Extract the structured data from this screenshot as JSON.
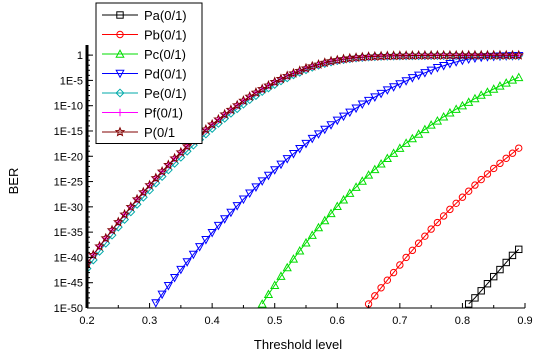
{
  "chart_data": {
    "type": "line",
    "title": "",
    "xlabel": "Threshold level",
    "ylabel": "BER",
    "x_scale": "linear",
    "y_scale": "log",
    "xlim": [
      0.2,
      0.9
    ],
    "ylim_exponent": [
      -50,
      2
    ],
    "x_ticks": [
      "0.2",
      "0.3",
      "0.4",
      "0.5",
      "0.6",
      "0.7",
      "0.8",
      "0.9"
    ],
    "y_ticks": [
      "1",
      "1E-5",
      "1E-10",
      "1E-15",
      "1E-20",
      "1E-25",
      "1E-30",
      "1E-35",
      "1E-40",
      "1E-45",
      "1E-50"
    ],
    "legend_position": "top-left",
    "grid": false,
    "series": [
      {
        "name": "Pa(0/1)",
        "color": "#000000",
        "marker": "square",
        "x": [
          0.81,
          0.82,
          0.83,
          0.84,
          0.85,
          0.86,
          0.87,
          0.88,
          0.89
        ],
        "y_exponent": [
          -49.2,
          -48.0,
          -46.6,
          -45.2,
          -43.8,
          -42.4,
          -41.0,
          -39.6,
          -38.4
        ]
      },
      {
        "name": "Pb(0/1)",
        "color": "#ff0000",
        "marker": "circle",
        "x": [
          0.65,
          0.66,
          0.67,
          0.68,
          0.69,
          0.7,
          0.71,
          0.72,
          0.73,
          0.74,
          0.75,
          0.76,
          0.77,
          0.78,
          0.79,
          0.8,
          0.81,
          0.82,
          0.83,
          0.84,
          0.85,
          0.86,
          0.87,
          0.88,
          0.89
        ],
        "y_exponent": [
          -49.2,
          -47.6,
          -46.0,
          -44.5,
          -43.0,
          -41.5,
          -40.0,
          -38.6,
          -37.2,
          -35.8,
          -34.4,
          -33.1,
          -31.8,
          -30.5,
          -29.3,
          -28.1,
          -26.9,
          -25.7,
          -24.6,
          -23.5,
          -22.4,
          -21.4,
          -20.4,
          -19.4,
          -18.4
        ]
      },
      {
        "name": "Pc(0/1)",
        "color": "#00dd00",
        "marker": "triangle-up",
        "x": [
          0.48,
          0.49,
          0.5,
          0.51,
          0.52,
          0.53,
          0.54,
          0.55,
          0.56,
          0.57,
          0.58,
          0.59,
          0.6,
          0.61,
          0.62,
          0.63,
          0.64,
          0.65,
          0.66,
          0.67,
          0.68,
          0.69,
          0.7,
          0.71,
          0.72,
          0.73,
          0.74,
          0.75,
          0.76,
          0.77,
          0.78,
          0.79,
          0.8,
          0.81,
          0.82,
          0.83,
          0.84,
          0.85,
          0.86,
          0.87,
          0.88,
          0.89
        ],
        "y_exponent": [
          -49.2,
          -47.3,
          -45.5,
          -43.7,
          -42.0,
          -40.3,
          -38.7,
          -37.1,
          -35.6,
          -34.1,
          -32.7,
          -31.3,
          -29.9,
          -28.6,
          -27.3,
          -26.1,
          -24.9,
          -23.7,
          -22.6,
          -21.5,
          -20.4,
          -19.4,
          -18.4,
          -17.4,
          -16.5,
          -15.6,
          -14.7,
          -13.8,
          -13.0,
          -12.2,
          -11.4,
          -10.7,
          -10.0,
          -9.3,
          -8.6,
          -7.9,
          -7.3,
          -6.7,
          -6.1,
          -5.5,
          -4.9,
          -4.4
        ]
      },
      {
        "name": "Pd(0/1)",
        "color": "#0000ff",
        "marker": "triangle-down",
        "x": [
          0.31,
          0.32,
          0.33,
          0.34,
          0.35,
          0.36,
          0.37,
          0.38,
          0.39,
          0.4,
          0.41,
          0.42,
          0.43,
          0.44,
          0.45,
          0.46,
          0.47,
          0.48,
          0.49,
          0.5,
          0.51,
          0.52,
          0.53,
          0.54,
          0.55,
          0.56,
          0.57,
          0.58,
          0.59,
          0.6,
          0.61,
          0.62,
          0.63,
          0.64,
          0.65,
          0.66,
          0.67,
          0.68,
          0.69,
          0.7,
          0.71,
          0.72,
          0.73,
          0.74,
          0.75,
          0.76,
          0.77,
          0.78,
          0.79,
          0.8,
          0.81,
          0.82,
          0.83,
          0.84,
          0.85,
          0.86,
          0.87,
          0.88,
          0.89
        ],
        "y_exponent": [
          -49.0,
          -47.3,
          -45.6,
          -44.0,
          -42.4,
          -40.9,
          -39.4,
          -37.9,
          -36.5,
          -35.1,
          -33.7,
          -32.4,
          -31.1,
          -29.8,
          -28.5,
          -27.3,
          -26.1,
          -24.9,
          -23.8,
          -22.7,
          -21.6,
          -20.5,
          -19.5,
          -18.5,
          -17.5,
          -16.5,
          -15.6,
          -14.7,
          -13.8,
          -12.9,
          -12.1,
          -11.3,
          -10.5,
          -9.7,
          -9.0,
          -8.3,
          -7.6,
          -6.9,
          -6.3,
          -5.7,
          -5.1,
          -4.5,
          -4.0,
          -3.5,
          -3.0,
          -2.5,
          -2.1,
          -1.7,
          -1.35,
          -1.05,
          -0.8,
          -0.6,
          -0.45,
          -0.35,
          -0.28,
          -0.22,
          -0.18,
          -0.15,
          -0.12
        ]
      },
      {
        "name": "Pe(0/1)",
        "color": "#00aaaa",
        "marker": "diamond",
        "x": [
          0.2,
          0.21,
          0.22,
          0.23,
          0.24,
          0.25,
          0.26,
          0.27,
          0.28,
          0.29,
          0.3,
          0.31,
          0.32,
          0.33,
          0.34,
          0.35,
          0.36,
          0.37,
          0.38,
          0.39,
          0.4,
          0.41,
          0.42,
          0.43,
          0.44,
          0.45,
          0.46,
          0.47,
          0.48,
          0.49,
          0.5,
          0.51,
          0.52,
          0.53,
          0.54,
          0.55,
          0.56,
          0.57,
          0.58,
          0.59,
          0.6,
          0.61,
          0.62,
          0.63,
          0.64,
          0.65,
          0.66,
          0.67,
          0.68,
          0.69,
          0.7,
          0.71,
          0.72,
          0.73,
          0.74,
          0.75,
          0.76,
          0.77,
          0.78,
          0.79,
          0.8,
          0.81,
          0.82,
          0.83,
          0.84,
          0.85,
          0.86,
          0.87,
          0.88,
          0.89
        ],
        "y_exponent": [
          -42.2,
          -40.5,
          -38.8,
          -37.2,
          -35.6,
          -34.0,
          -32.5,
          -31.0,
          -29.5,
          -28.1,
          -26.7,
          -25.3,
          -24.0,
          -22.7,
          -21.4,
          -20.2,
          -19.0,
          -17.8,
          -16.7,
          -15.6,
          -14.5,
          -13.5,
          -12.5,
          -11.5,
          -10.6,
          -9.7,
          -8.8,
          -8.0,
          -7.2,
          -6.5,
          -5.8,
          -5.1,
          -4.5,
          -3.9,
          -3.4,
          -2.9,
          -2.4,
          -2.0,
          -1.65,
          -1.35,
          -1.1,
          -0.9,
          -0.72,
          -0.58,
          -0.47,
          -0.38,
          -0.31,
          -0.26,
          -0.22,
          -0.19,
          -0.17,
          -0.15,
          -0.14,
          -0.13,
          -0.12,
          -0.11,
          -0.11,
          -0.1,
          -0.1,
          -0.1,
          -0.1,
          -0.1,
          -0.1,
          -0.1,
          -0.1,
          -0.1,
          -0.1,
          -0.1,
          -0.1,
          -0.1
        ]
      },
      {
        "name": "Pf(0/1)",
        "color": "#ff00ff",
        "marker": "plus",
        "x": [
          0.2,
          0.21,
          0.22,
          0.23,
          0.24,
          0.25,
          0.26,
          0.27,
          0.28,
          0.29,
          0.3,
          0.31,
          0.32,
          0.33,
          0.34,
          0.35,
          0.36,
          0.37,
          0.38,
          0.39,
          0.4,
          0.41,
          0.42,
          0.43,
          0.44,
          0.45,
          0.46,
          0.47,
          0.48,
          0.49,
          0.5,
          0.51,
          0.52,
          0.53,
          0.54,
          0.55,
          0.56,
          0.57,
          0.58,
          0.59,
          0.6,
          0.61,
          0.62,
          0.63,
          0.64,
          0.65,
          0.66,
          0.67,
          0.68,
          0.69,
          0.7,
          0.71,
          0.72,
          0.73,
          0.74,
          0.75,
          0.76,
          0.77,
          0.78,
          0.79,
          0.8,
          0.81,
          0.82,
          0.83,
          0.84,
          0.85,
          0.86,
          0.87,
          0.88,
          0.89
        ],
        "y_exponent": [
          -41.2,
          -39.5,
          -37.8,
          -36.2,
          -34.6,
          -33.0,
          -31.5,
          -30.0,
          -28.5,
          -27.1,
          -25.7,
          -24.3,
          -23.0,
          -21.7,
          -20.4,
          -19.2,
          -18.0,
          -16.9,
          -15.8,
          -14.7,
          -13.7,
          -12.7,
          -11.7,
          -10.8,
          -9.9,
          -9.0,
          -8.2,
          -7.4,
          -6.7,
          -6.0,
          -5.3,
          -4.7,
          -4.1,
          -3.6,
          -3.1,
          -2.6,
          -2.2,
          -1.85,
          -1.5,
          -1.2,
          -0.98,
          -0.78,
          -0.62,
          -0.49,
          -0.39,
          -0.31,
          -0.25,
          -0.2,
          -0.16,
          -0.13,
          -0.11,
          -0.09,
          -0.08,
          -0.07,
          -0.06,
          -0.05,
          -0.05,
          -0.04,
          -0.04,
          -0.04,
          -0.03,
          -0.03,
          -0.03,
          -0.03,
          -0.03,
          -0.03,
          -0.03,
          -0.03,
          -0.03,
          -0.03
        ]
      },
      {
        "name": "P(0/1",
        "color": "#800000",
        "marker": "star",
        "x": [
          0.2,
          0.21,
          0.22,
          0.23,
          0.24,
          0.25,
          0.26,
          0.27,
          0.28,
          0.29,
          0.3,
          0.31,
          0.32,
          0.33,
          0.34,
          0.35,
          0.36,
          0.37,
          0.38,
          0.39,
          0.4,
          0.41,
          0.42,
          0.43,
          0.44,
          0.45,
          0.46,
          0.47,
          0.48,
          0.49,
          0.5,
          0.51,
          0.52,
          0.53,
          0.54,
          0.55,
          0.56,
          0.57,
          0.58,
          0.59,
          0.6,
          0.61,
          0.62,
          0.63,
          0.64,
          0.65,
          0.66,
          0.67,
          0.68,
          0.69,
          0.7,
          0.71,
          0.72,
          0.73,
          0.74,
          0.75,
          0.76,
          0.77,
          0.78,
          0.79,
          0.8,
          0.81,
          0.82,
          0.83,
          0.84,
          0.85,
          0.86,
          0.87,
          0.88,
          0.89
        ],
        "y_exponent": [
          -41.2,
          -39.5,
          -37.8,
          -36.2,
          -34.6,
          -33.0,
          -31.5,
          -30.0,
          -28.5,
          -27.1,
          -25.7,
          -24.3,
          -23.0,
          -21.7,
          -20.4,
          -19.2,
          -18.0,
          -16.9,
          -15.8,
          -14.7,
          -13.7,
          -12.7,
          -11.7,
          -10.8,
          -9.9,
          -9.0,
          -8.2,
          -7.4,
          -6.7,
          -6.0,
          -5.3,
          -4.7,
          -4.1,
          -3.6,
          -3.1,
          -2.6,
          -2.2,
          -1.85,
          -1.5,
          -1.2,
          -0.98,
          -0.78,
          -0.62,
          -0.49,
          -0.39,
          -0.31,
          -0.25,
          -0.2,
          -0.16,
          -0.13,
          -0.11,
          -0.09,
          -0.08,
          -0.07,
          -0.06,
          -0.05,
          -0.05,
          -0.04,
          -0.04,
          -0.04,
          -0.03,
          -0.03,
          -0.03,
          -0.03,
          -0.03,
          -0.03,
          -0.03,
          -0.03,
          -0.03,
          -0.03
        ]
      }
    ]
  }
}
